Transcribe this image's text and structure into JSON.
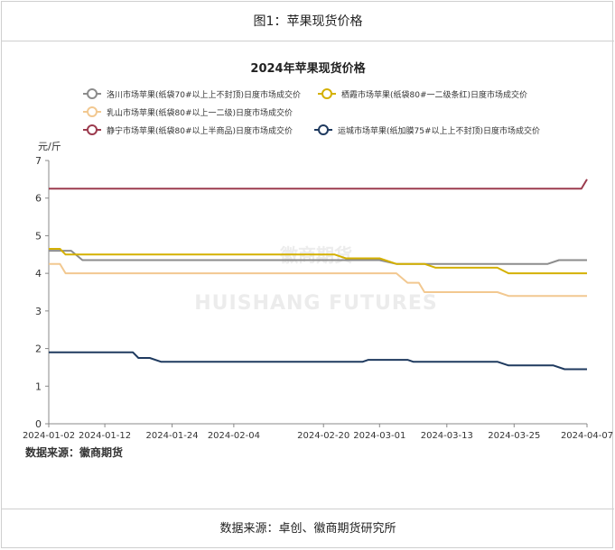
{
  "figure_title": "图1：苹果现货价格",
  "source_footer": "数据来源：卓创、徽商期货研究所",
  "chart_data": {
    "type": "line",
    "title": "2024年苹果现货价格",
    "ylabel": "元/斤",
    "ylim": [
      0,
      7
    ],
    "yticks": [
      "0",
      "1",
      "2",
      "3",
      "4",
      "5",
      "6",
      "7"
    ],
    "x_range": [
      "2024-01-02",
      "2024-04-07"
    ],
    "xticks": [
      "2024-01-02",
      "2024-01-12",
      "2024-01-24",
      "2024-02-04",
      "2024-02-20",
      "2024-03-01",
      "2024-03-13",
      "2024-03-25",
      "2024-04-07"
    ],
    "grid": false,
    "legend_position": "top",
    "watermark": [
      "徽商期货",
      "HUISHANG FUTURES"
    ],
    "source_note": "数据来源：徽商期货",
    "series": [
      {
        "name": "洛川市场苹果(纸袋70#以上上不封顶)日度市场成交价",
        "color": "#8c8c8c",
        "points": [
          [
            "2024-01-02",
            4.6
          ],
          [
            "2024-01-06",
            4.6
          ],
          [
            "2024-01-08",
            4.35
          ],
          [
            "2024-03-01",
            4.35
          ],
          [
            "2024-03-04",
            4.25
          ],
          [
            "2024-03-31",
            4.25
          ],
          [
            "2024-04-02",
            4.35
          ],
          [
            "2024-04-07",
            4.35
          ]
        ]
      },
      {
        "name": "栖霞市场苹果(纸袋80#一二级条红)日度市场成交价",
        "color": "#d4b000",
        "points": [
          [
            "2024-01-02",
            4.65
          ],
          [
            "2024-01-04",
            4.65
          ],
          [
            "2024-01-05",
            4.5
          ],
          [
            "2024-02-22",
            4.5
          ],
          [
            "2024-02-24",
            4.4
          ],
          [
            "2024-03-01",
            4.4
          ],
          [
            "2024-03-04",
            4.25
          ],
          [
            "2024-03-09",
            4.25
          ],
          [
            "2024-03-11",
            4.15
          ],
          [
            "2024-03-22",
            4.15
          ],
          [
            "2024-03-24",
            4.0
          ],
          [
            "2024-04-07",
            4.0
          ]
        ]
      },
      {
        "name": "乳山市场苹果(纸袋80#以上一二级)日度市场成交价",
        "color": "#f2c890",
        "points": [
          [
            "2024-01-02",
            4.25
          ],
          [
            "2024-01-04",
            4.25
          ],
          [
            "2024-01-05",
            4.0
          ],
          [
            "2024-03-04",
            4.0
          ],
          [
            "2024-03-06",
            3.75
          ],
          [
            "2024-03-08",
            3.75
          ],
          [
            "2024-03-09",
            3.5
          ],
          [
            "2024-03-22",
            3.5
          ],
          [
            "2024-03-24",
            3.4
          ],
          [
            "2024-04-07",
            3.4
          ]
        ]
      },
      {
        "name": "静宁市场苹果(纸袋80#以上半商品)日度市场成交价",
        "color": "#9c3b4e",
        "points": [
          [
            "2024-01-02",
            6.25
          ],
          [
            "2024-04-06",
            6.25
          ],
          [
            "2024-04-07",
            6.5
          ]
        ]
      },
      {
        "name": "运城市场苹果(纸加膜75#以上上不封顶)日度市场成交价",
        "color": "#1f3a5f",
        "points": [
          [
            "2024-01-02",
            1.9
          ],
          [
            "2024-01-17",
            1.9
          ],
          [
            "2024-01-18",
            1.75
          ],
          [
            "2024-01-20",
            1.75
          ],
          [
            "2024-01-22",
            1.65
          ],
          [
            "2024-02-27",
            1.65
          ],
          [
            "2024-02-28",
            1.7
          ],
          [
            "2024-03-06",
            1.7
          ],
          [
            "2024-03-07",
            1.65
          ],
          [
            "2024-03-22",
            1.65
          ],
          [
            "2024-03-24",
            1.55
          ],
          [
            "2024-04-01",
            1.55
          ],
          [
            "2024-04-03",
            1.45
          ],
          [
            "2024-04-07",
            1.45
          ]
        ]
      }
    ]
  }
}
